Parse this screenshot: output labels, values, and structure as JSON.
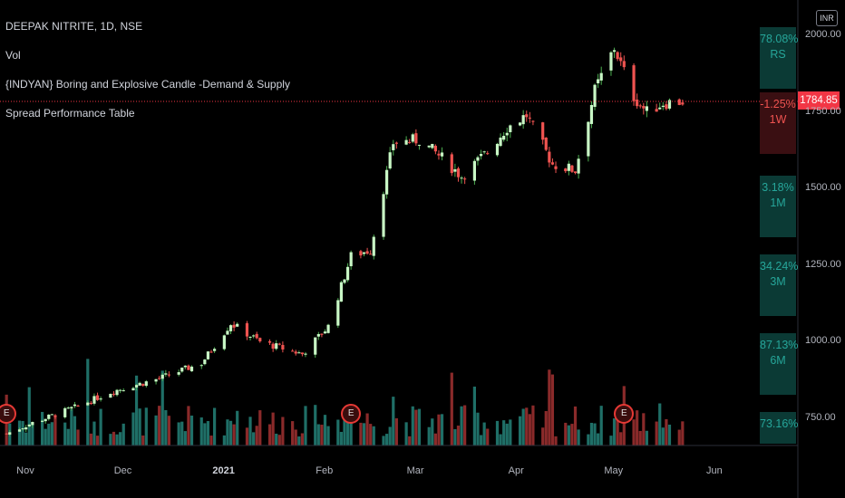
{
  "legend": {
    "symbol": "DEEPAK NITRITE, 1D, NSE",
    "vol": "Vol",
    "indicator1": "{INDYAN} Boring and Explosive Candle -Demand & Supply",
    "indicator2": "Spread Performance Table"
  },
  "currency": "INR",
  "last_price": "1784.85",
  "performance_table": [
    {
      "value": "78.08%",
      "period": "RS",
      "color": "#26a69a",
      "bg": "#0b3a35"
    },
    {
      "value": "-1.25%",
      "period": "1W",
      "color": "#ef5350",
      "bg": "#3a0f12"
    },
    {
      "value": "3.18%",
      "period": "1M",
      "color": "#26a69a",
      "bg": "#0b3a35"
    },
    {
      "value": "34.24%",
      "period": "3M",
      "color": "#26a69a",
      "bg": "#0b3a35"
    },
    {
      "value": "87.13%",
      "period": "6M",
      "color": "#26a69a",
      "bg": "#0b3a35"
    },
    {
      "value": "73.16%",
      "period": "",
      "color": "#26a69a",
      "bg": "#0b3a35"
    }
  ],
  "y_axis_labels": [
    "2000.00",
    "1750.00",
    "1500.00",
    "1250.00",
    "1000.00",
    "750.00"
  ],
  "x_axis_labels": [
    {
      "text": "Nov",
      "bold": false
    },
    {
      "text": "Dec",
      "bold": false
    },
    {
      "text": "2021",
      "bold": true
    },
    {
      "text": "Feb",
      "bold": false
    },
    {
      "text": "Mar",
      "bold": false
    },
    {
      "text": "Apr",
      "bold": false
    },
    {
      "text": "May",
      "bold": false
    },
    {
      "text": "Jun",
      "bold": false
    }
  ],
  "earnings_marker": "E",
  "colors": {
    "up": "#26a69a",
    "down": "#ef5350",
    "up_candle": "#c8f7c5",
    "price_line": "#f23645"
  },
  "chart_data": {
    "type": "candlestick",
    "title": "DEEPAK NITRITE, 1D, NSE",
    "ylim": [
      650,
      2100
    ],
    "close_anchors": [
      {
        "date": "2020-10-29",
        "close": 700
      },
      {
        "date": "2020-11-06",
        "close": 735
      },
      {
        "date": "2020-11-20",
        "close": 790
      },
      {
        "date": "2020-12-01",
        "close": 840
      },
      {
        "date": "2020-12-15",
        "close": 880
      },
      {
        "date": "2020-12-28",
        "close": 930
      },
      {
        "date": "2021-01-06",
        "close": 1060
      },
      {
        "date": "2021-01-15",
        "close": 1000
      },
      {
        "date": "2021-01-28",
        "close": 960
      },
      {
        "date": "2021-02-05",
        "close": 1050
      },
      {
        "date": "2021-02-12",
        "close": 1280
      },
      {
        "date": "2021-02-18",
        "close": 1300
      },
      {
        "date": "2021-02-25",
        "close": 1650
      },
      {
        "date": "2021-03-05",
        "close": 1660
      },
      {
        "date": "2021-03-12",
        "close": 1600
      },
      {
        "date": "2021-03-18",
        "close": 1540
      },
      {
        "date": "2021-03-26",
        "close": 1620
      },
      {
        "date": "2021-04-01",
        "close": 1700
      },
      {
        "date": "2021-04-07",
        "close": 1740
      },
      {
        "date": "2021-04-15",
        "close": 1580
      },
      {
        "date": "2021-04-22",
        "close": 1560
      },
      {
        "date": "2021-04-28",
        "close": 1820
      },
      {
        "date": "2021-05-04",
        "close": 1960
      },
      {
        "date": "2021-05-10",
        "close": 1800
      },
      {
        "date": "2021-05-14",
        "close": 1750
      },
      {
        "date": "2021-05-19",
        "close": 1780
      },
      {
        "date": "2021-05-25",
        "close": 1784.85
      }
    ],
    "earnings_dates": [
      "2020-10-29",
      "2021-02-12",
      "2021-05-07"
    ]
  }
}
